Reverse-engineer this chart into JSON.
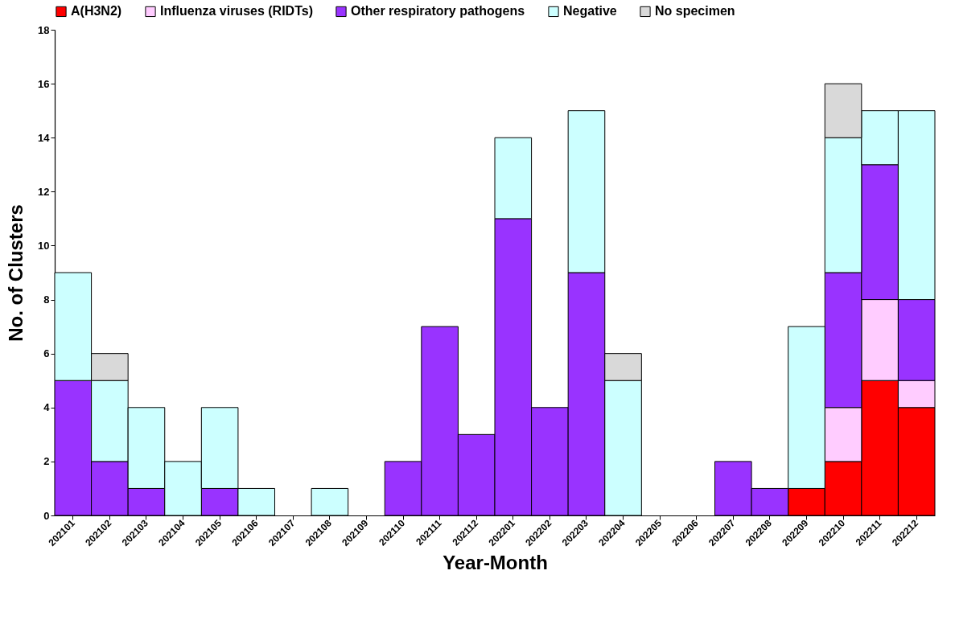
{
  "chart_data": {
    "type": "bar",
    "stacked": true,
    "xlabel": "Year-Month",
    "ylabel": "No. of Clusters",
    "legend": "top",
    "grid": false,
    "ylim": [
      0,
      18
    ],
    "yticks": [
      0,
      2,
      4,
      6,
      8,
      10,
      12,
      14,
      16,
      18
    ],
    "categories": [
      "202101",
      "202102",
      "202103",
      "202104",
      "202105",
      "202106",
      "202107",
      "202108",
      "202109",
      "202110",
      "202111",
      "202112",
      "202201",
      "202202",
      "202203",
      "202204",
      "202205",
      "202206",
      "202207",
      "202208",
      "202209",
      "202210",
      "202211",
      "202212"
    ],
    "series": [
      {
        "name": "A(H3N2)",
        "color": "#ff0000",
        "values": [
          null,
          null,
          null,
          null,
          null,
          null,
          null,
          null,
          null,
          null,
          null,
          null,
          null,
          null,
          null,
          null,
          null,
          null,
          null,
          null,
          1,
          2,
          5,
          4
        ]
      },
      {
        "name": "Influenza viruses (RIDTs)",
        "color": "#ffccff",
        "values": [
          null,
          null,
          null,
          null,
          null,
          null,
          null,
          null,
          null,
          null,
          null,
          null,
          null,
          null,
          null,
          null,
          null,
          null,
          null,
          null,
          null,
          2,
          3,
          1
        ]
      },
      {
        "name": "Other respiratory pathogens",
        "color": "#9933ff",
        "values": [
          5,
          2,
          1,
          null,
          1,
          null,
          null,
          null,
          null,
          2,
          7,
          3,
          11,
          4,
          9,
          null,
          null,
          null,
          2,
          1,
          null,
          5,
          5,
          3
        ]
      },
      {
        "name": "Negative",
        "color": "#ccffff",
        "values": [
          4,
          3,
          3,
          2,
          3,
          1,
          null,
          1,
          null,
          null,
          null,
          null,
          3,
          null,
          6,
          5,
          null,
          null,
          null,
          null,
          6,
          5,
          2,
          7
        ]
      },
      {
        "name": "No specimen",
        "color": "#d9d9d9",
        "values": [
          null,
          1,
          null,
          null,
          null,
          null,
          null,
          null,
          null,
          null,
          null,
          null,
          null,
          null,
          null,
          1,
          null,
          null,
          null,
          null,
          null,
          2,
          null,
          null
        ]
      }
    ]
  }
}
